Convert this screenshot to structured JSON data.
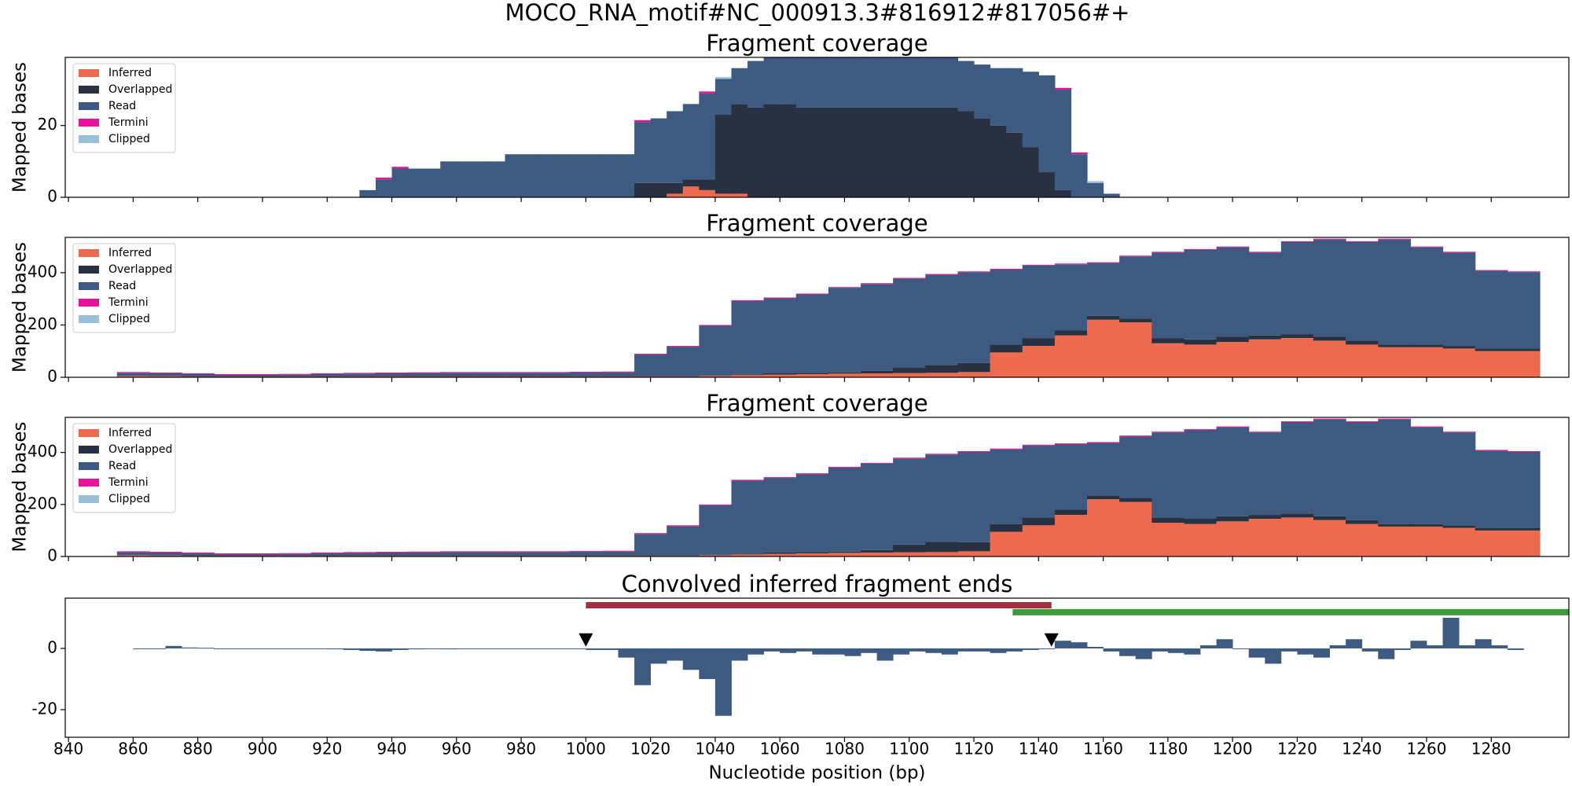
{
  "title": "MOCO_RNA_motif#NC_000913.3#816912#817056#+",
  "chart_data": [
    {
      "type": "area",
      "title": "Fragment coverage",
      "y_label": "Mapped bases",
      "legend": "upper left",
      "xlim": [
        839,
        1304
      ],
      "xticks": [
        840,
        860,
        880,
        900,
        920,
        940,
        960,
        980,
        1000,
        1020,
        1040,
        1060,
        1080,
        1100,
        1120,
        1140,
        1160,
        1180,
        1200,
        1220,
        1240,
        1260,
        1280
      ],
      "xtick_labels": false,
      "ylim": [
        0,
        39
      ],
      "yticks": [
        0,
        20
      ],
      "x": [
        925,
        930,
        935,
        940,
        945,
        950,
        955,
        960,
        965,
        970,
        975,
        980,
        985,
        990,
        995,
        1000,
        1005,
        1010,
        1015,
        1020,
        1025,
        1030,
        1035,
        1040,
        1045,
        1050,
        1055,
        1060,
        1065,
        1070,
        1075,
        1080,
        1085,
        1090,
        1095,
        1100,
        1105,
        1110,
        1115,
        1120,
        1125,
        1130,
        1135,
        1140,
        1145,
        1150,
        1155,
        1160,
        1165
      ],
      "series": [
        {
          "name": "Inferred",
          "color": "#ee6a4e",
          "values": [
            0,
            0,
            0,
            0,
            0,
            0,
            0,
            0,
            0,
            0,
            0,
            0,
            0,
            0,
            0,
            0,
            0,
            0,
            0,
            0,
            1,
            3,
            2,
            1,
            1,
            0,
            0,
            0,
            0,
            0,
            0,
            0,
            0,
            0,
            0,
            0,
            0,
            0,
            0,
            0,
            0,
            0,
            0,
            0,
            0,
            0,
            0,
            0,
            0
          ]
        },
        {
          "name": "Overlapped",
          "color": "#283142",
          "values": [
            0,
            0,
            0,
            0,
            0,
            0,
            0,
            0,
            0,
            0,
            0,
            0,
            0,
            0,
            0,
            0,
            0,
            0,
            4,
            4,
            3,
            2,
            3,
            22,
            25,
            25,
            26,
            26,
            25,
            25,
            25,
            25,
            25,
            25,
            25,
            25,
            25,
            25,
            24,
            22,
            20,
            18,
            14,
            7,
            2,
            0,
            0,
            0,
            0
          ]
        },
        {
          "name": "Read",
          "color": "#3d5a80",
          "values": [
            0,
            2,
            5,
            8,
            8,
            8,
            10,
            10,
            10,
            10,
            12,
            12,
            12,
            12,
            12,
            12,
            12,
            12,
            17,
            18,
            20,
            21,
            24,
            10,
            10,
            13,
            13,
            13,
            14,
            14,
            14,
            14,
            14,
            14,
            14,
            14,
            14,
            14,
            14,
            15,
            16,
            18,
            21,
            27,
            28,
            12,
            4,
            1,
            0
          ]
        },
        {
          "name": "Termini",
          "color": "#e7119b",
          "values": [
            0,
            0,
            0.5,
            0.5,
            0,
            0,
            0,
            0,
            0,
            0,
            0,
            0,
            0,
            0,
            0,
            0,
            0,
            0,
            0.5,
            0,
            0,
            0,
            0.5,
            0,
            0,
            0,
            0,
            0,
            0,
            0,
            0,
            0,
            0,
            0,
            0,
            0,
            0,
            0,
            0,
            0,
            0,
            0,
            0,
            0,
            0.5,
            0.5,
            0,
            0,
            0
          ]
        },
        {
          "name": "Clipped",
          "color": "#98c1d9",
          "values": [
            0,
            0,
            0,
            0,
            0,
            0,
            0,
            0,
            0,
            0,
            0,
            0,
            0,
            0,
            0,
            0,
            0,
            0,
            0,
            0,
            0,
            0,
            0,
            0.5,
            0,
            0,
            0,
            0,
            0,
            0,
            0,
            0,
            0,
            0,
            0,
            0,
            0,
            0,
            0,
            0,
            0,
            0,
            0,
            0,
            0,
            0,
            0.5,
            0,
            0
          ]
        }
      ]
    },
    {
      "type": "area",
      "title": "Fragment coverage",
      "y_label": "Mapped bases",
      "legend": "upper left",
      "xlim": [
        839,
        1304
      ],
      "xticks": [
        840,
        860,
        880,
        900,
        920,
        940,
        960,
        980,
        1000,
        1020,
        1040,
        1060,
        1080,
        1100,
        1120,
        1140,
        1160,
        1180,
        1200,
        1220,
        1240,
        1260,
        1280
      ],
      "xtick_labels": false,
      "ylim": [
        0,
        535
      ],
      "yticks": [
        0,
        200,
        400
      ],
      "x": [
        855,
        865,
        875,
        885,
        895,
        905,
        915,
        925,
        935,
        945,
        955,
        965,
        975,
        985,
        995,
        1005,
        1015,
        1025,
        1035,
        1045,
        1055,
        1065,
        1075,
        1085,
        1095,
        1105,
        1115,
        1125,
        1135,
        1145,
        1155,
        1165,
        1175,
        1185,
        1195,
        1205,
        1215,
        1225,
        1235,
        1245,
        1255,
        1265,
        1275,
        1285
      ],
      "series": [
        {
          "name": "Inferred",
          "color": "#ee6a4e",
          "values": [
            5,
            4,
            3,
            3,
            3,
            3,
            3,
            3,
            3,
            3,
            3,
            3,
            3,
            3,
            3,
            3,
            3,
            3,
            5,
            8,
            10,
            12,
            14,
            15,
            16,
            17,
            20,
            95,
            120,
            160,
            220,
            210,
            130,
            125,
            135,
            145,
            150,
            140,
            125,
            115,
            115,
            110,
            100,
            100
          ]
        },
        {
          "name": "Overlapped",
          "color": "#283142",
          "values": [
            0,
            0,
            0,
            0,
            0,
            0,
            0,
            0,
            0,
            0,
            0,
            0,
            0,
            0,
            0,
            0,
            0,
            0,
            2,
            3,
            5,
            5,
            5,
            10,
            20,
            30,
            35,
            30,
            30,
            20,
            15,
            15,
            20,
            20,
            20,
            15,
            15,
            15,
            15,
            10,
            10,
            10,
            10,
            10
          ]
        },
        {
          "name": "Read",
          "color": "#3d5a80",
          "values": [
            12,
            11,
            9,
            6,
            6,
            7,
            9,
            11,
            12,
            13,
            14,
            14,
            14,
            14,
            15,
            16,
            84,
            114,
            190,
            281,
            287,
            300,
            323,
            332,
            341,
            345,
            347,
            287,
            277,
            252,
            202,
            237,
            327,
            342,
            342,
            317,
            352,
            372,
            377,
            402,
            372,
            357,
            297,
            292
          ]
        },
        {
          "name": "Termini",
          "color": "#e7119b",
          "values": [
            3,
            3,
            3,
            3,
            3,
            3,
            3,
            3,
            3,
            3,
            3,
            3,
            3,
            3,
            3,
            3,
            3,
            3,
            3,
            3,
            3,
            3,
            3,
            3,
            3,
            3,
            3,
            3,
            3,
            3,
            3,
            3,
            3,
            3,
            3,
            3,
            3,
            3,
            3,
            3,
            3,
            3,
            3,
            3
          ]
        },
        {
          "name": "Clipped",
          "color": "#98c1d9",
          "values": [
            0,
            0,
            0,
            0,
            0,
            0,
            0,
            0,
            0,
            0,
            0,
            0,
            0,
            0,
            0,
            0,
            0,
            0,
            0,
            0,
            0,
            0,
            0,
            0,
            0,
            0,
            0,
            0,
            0,
            0,
            0,
            0,
            0,
            0,
            0,
            0,
            0,
            0,
            0,
            0,
            0,
            0,
            0,
            0
          ]
        }
      ]
    },
    {
      "type": "area",
      "title": "Fragment coverage",
      "y_label": "Mapped bases",
      "legend": "upper left",
      "xlim": [
        839,
        1304
      ],
      "xticks": [
        840,
        860,
        880,
        900,
        920,
        940,
        960,
        980,
        1000,
        1020,
        1040,
        1060,
        1080,
        1100,
        1120,
        1140,
        1160,
        1180,
        1200,
        1220,
        1240,
        1260,
        1280
      ],
      "xtick_labels": false,
      "ylim": [
        0,
        535
      ],
      "yticks": [
        0,
        200,
        400
      ],
      "x": [
        855,
        865,
        875,
        885,
        895,
        905,
        915,
        925,
        935,
        945,
        955,
        965,
        975,
        985,
        995,
        1005,
        1015,
        1025,
        1035,
        1045,
        1055,
        1065,
        1075,
        1085,
        1095,
        1105,
        1115,
        1125,
        1135,
        1145,
        1155,
        1165,
        1175,
        1185,
        1195,
        1205,
        1215,
        1225,
        1235,
        1245,
        1255,
        1265,
        1275,
        1285
      ],
      "series": [
        {
          "name": "Inferred",
          "color": "#ee6a4e",
          "values": [
            5,
            4,
            3,
            3,
            3,
            3,
            3,
            3,
            3,
            3,
            3,
            3,
            3,
            3,
            3,
            3,
            3,
            3,
            5,
            8,
            10,
            12,
            14,
            15,
            16,
            17,
            20,
            95,
            120,
            160,
            220,
            210,
            130,
            125,
            135,
            145,
            150,
            140,
            125,
            115,
            115,
            110,
            100,
            100
          ]
        },
        {
          "name": "Overlapped",
          "color": "#283142",
          "values": [
            0,
            0,
            0,
            0,
            0,
            0,
            0,
            0,
            0,
            0,
            0,
            0,
            0,
            0,
            0,
            0,
            0,
            0,
            2,
            3,
            5,
            5,
            5,
            10,
            30,
            40,
            35,
            30,
            30,
            20,
            15,
            15,
            20,
            20,
            20,
            15,
            15,
            15,
            15,
            10,
            10,
            10,
            10,
            10
          ]
        },
        {
          "name": "Read",
          "color": "#3d5a80",
          "values": [
            12,
            11,
            9,
            6,
            6,
            7,
            9,
            11,
            12,
            13,
            14,
            14,
            14,
            14,
            15,
            16,
            84,
            114,
            190,
            281,
            287,
            300,
            323,
            332,
            331,
            335,
            347,
            287,
            277,
            252,
            202,
            237,
            327,
            342,
            342,
            317,
            352,
            372,
            377,
            402,
            372,
            357,
            297,
            292
          ]
        },
        {
          "name": "Termini",
          "color": "#e7119b",
          "values": [
            3,
            3,
            3,
            3,
            3,
            3,
            3,
            3,
            3,
            3,
            3,
            3,
            3,
            3,
            3,
            3,
            3,
            3,
            3,
            3,
            3,
            3,
            3,
            3,
            3,
            3,
            3,
            3,
            3,
            3,
            3,
            3,
            3,
            3,
            3,
            3,
            3,
            3,
            3,
            3,
            3,
            3,
            3,
            3
          ]
        },
        {
          "name": "Clipped",
          "color": "#98c1d9",
          "values": [
            0,
            0,
            0,
            0,
            0,
            0,
            0,
            0,
            0,
            0,
            0,
            0,
            0,
            0,
            0,
            0,
            0,
            0,
            0,
            0,
            0,
            0,
            0,
            0,
            0,
            0,
            0,
            0,
            0,
            0,
            0,
            0,
            0,
            0,
            0,
            0,
            0,
            0,
            0,
            0,
            0,
            0,
            0,
            0
          ]
        }
      ]
    },
    {
      "type": "bar",
      "title": "Convolved inferred fragment ends",
      "x_label": "Nucleotide position (bp)",
      "color": "#3d5a80",
      "xlim": [
        839,
        1304
      ],
      "xticks": [
        840,
        860,
        880,
        900,
        920,
        940,
        960,
        980,
        1000,
        1020,
        1040,
        1060,
        1080,
        1100,
        1120,
        1140,
        1160,
        1180,
        1200,
        1220,
        1240,
        1260,
        1280
      ],
      "xtick_labels": true,
      "ylim": [
        -29,
        16.4
      ],
      "yticks": [
        -20,
        0
      ],
      "x": [
        860,
        865,
        870,
        875,
        880,
        885,
        890,
        895,
        900,
        905,
        910,
        915,
        920,
        925,
        930,
        935,
        940,
        945,
        950,
        955,
        960,
        965,
        970,
        975,
        980,
        985,
        990,
        995,
        1000,
        1005,
        1010,
        1015,
        1020,
        1025,
        1030,
        1035,
        1040,
        1045,
        1050,
        1055,
        1060,
        1065,
        1070,
        1075,
        1080,
        1085,
        1090,
        1095,
        1100,
        1105,
        1110,
        1115,
        1120,
        1125,
        1130,
        1135,
        1140,
        1145,
        1150,
        1155,
        1160,
        1165,
        1170,
        1175,
        1180,
        1185,
        1190,
        1195,
        1200,
        1205,
        1210,
        1215,
        1220,
        1225,
        1230,
        1235,
        1240,
        1245,
        1250,
        1255,
        1260,
        1265,
        1270,
        1275,
        1280,
        1285
      ],
      "values": [
        0,
        0,
        0.8,
        0.3,
        0.2,
        0,
        0,
        0,
        0,
        0,
        0,
        0,
        -0.3,
        -0.5,
        -0.8,
        -1,
        -0.5,
        -0.3,
        0,
        -0.3,
        0,
        0,
        0,
        0,
        0,
        0,
        0,
        0,
        -0.5,
        -0.5,
        -3,
        -12,
        -5,
        -4,
        -7,
        -10,
        -22,
        -4,
        -2,
        -1,
        -1.5,
        -1,
        -2,
        -2,
        -2.5,
        -1.5,
        -4,
        -2,
        -1,
        -1.5,
        -2,
        -1,
        -1,
        -1.5,
        -1,
        -0.5,
        0,
        2.5,
        2,
        0.5,
        -1,
        -2.5,
        -3.5,
        -1,
        -1.5,
        -2,
        1,
        3,
        0,
        -3,
        -5,
        -1,
        -2,
        -3,
        1,
        3,
        -1,
        -3.5,
        -0.5,
        2.5,
        1,
        10,
        1,
        3,
        1,
        -0.5
      ],
      "intervals": [
        {
          "start": 1000,
          "end": 1144,
          "y": 14.1,
          "color": "#a33040"
        },
        {
          "start": 1132,
          "end": 1304,
          "y": 11.8,
          "color": "#3c9a3c"
        }
      ],
      "markers": {
        "x": [
          1000,
          1144
        ],
        "y": 2.6,
        "color": "#000000"
      }
    }
  ]
}
